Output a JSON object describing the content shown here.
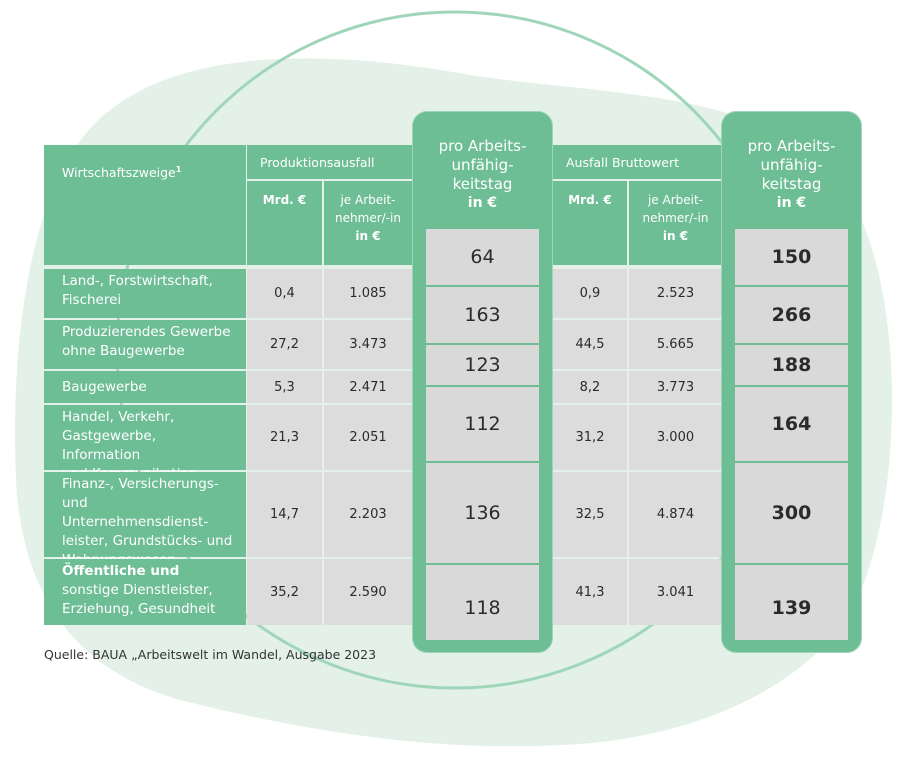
{
  "header": {
    "sectors_label": "Wirtschaftszweige",
    "sectors_sup": "1",
    "production_loss": "Produktionsausfall",
    "gross_value_loss": "Ausfall Bruttowert",
    "bn_eur": "Mrd. €",
    "per_employee_line1": "je Arbeit-",
    "per_employee_line2": "nehmer/-in",
    "per_employee_unit": "in €",
    "per_day_line1": "pro Arbeits-",
    "per_day_line2": "unfähig-",
    "per_day_line3": "keitstag",
    "per_day_unit": "in €"
  },
  "rows": [
    {
      "label_lines": [
        "Land-, Forstwirtschaft,",
        "Fischerei"
      ],
      "prod_bn": "0,4",
      "prod_per_emp": "1.085",
      "prod_per_day": "64",
      "gross_bn": "0,9",
      "gross_per_emp": "2.523",
      "gross_per_day": "150"
    },
    {
      "label_lines": [
        "Produzierendes Gewerbe",
        "ohne Baugewerbe"
      ],
      "prod_bn": "27,2",
      "prod_per_emp": "3.473",
      "prod_per_day": "163",
      "gross_bn": "44,5",
      "gross_per_emp": "5.665",
      "gross_per_day": "266"
    },
    {
      "label_lines": [
        "Baugewerbe"
      ],
      "prod_bn": "5,3",
      "prod_per_emp": "2.471",
      "prod_per_day": "123",
      "gross_bn": "8,2",
      "gross_per_emp": "3.773",
      "gross_per_day": "188"
    },
    {
      "label_lines": [
        "Handel, Verkehr,",
        "Gastgewerbe, Information",
        "und Kommunikation"
      ],
      "prod_bn": "21,3",
      "prod_per_emp": "2.051",
      "prod_per_day": "112",
      "gross_bn": "31,2",
      "gross_per_emp": "3.000",
      "gross_per_day": "164"
    },
    {
      "label_lines": [
        "Finanz-, Versicherungs-",
        "und Unternehmensdienst-",
        "leister, Grundstücks- und",
        "Wohnungswesen"
      ],
      "prod_bn": "14,7",
      "prod_per_emp": "2.203",
      "prod_per_day": "136",
      "gross_bn": "32,5",
      "gross_per_emp": "4.874",
      "gross_per_day": "300"
    },
    {
      "label_bold": "Öffentliche und",
      "label_lines": [
        "sonstige Dienstleister,",
        "Erziehung, Gesundheit"
      ],
      "prod_bn": "35,2",
      "prod_per_emp": "2.590",
      "prod_per_day": "118",
      "gross_bn": "41,3",
      "gross_per_emp": "3.041",
      "gross_per_day": "139"
    }
  ],
  "source": "Quelle: BAUA „Arbeitswelt im Wandel, Ausgabe 2023",
  "colors": {
    "green": "#6dbd95",
    "light_green": "#e3f1e8",
    "cell_gray": "#dcdcdc"
  }
}
